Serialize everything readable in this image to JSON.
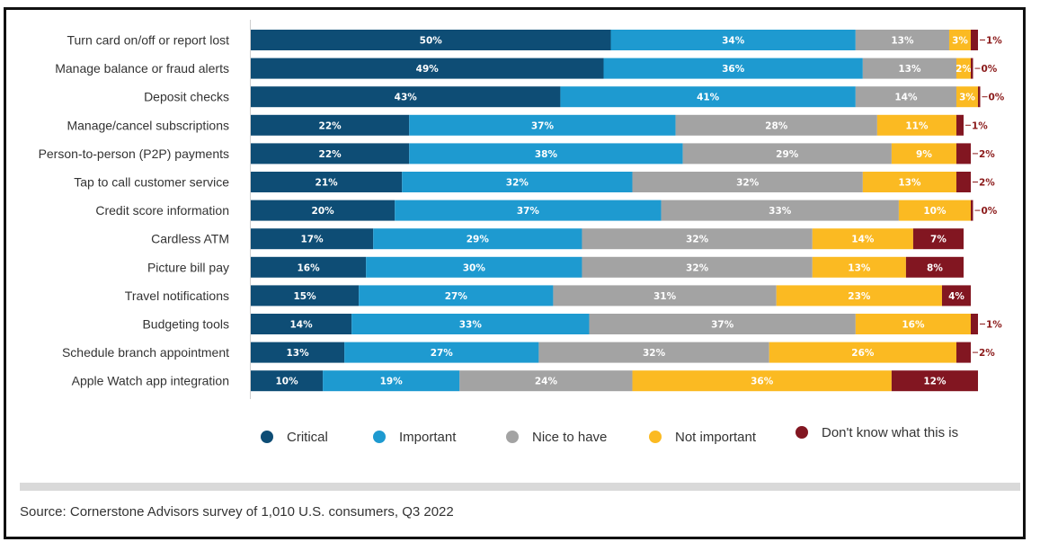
{
  "chart_data": {
    "type": "bar",
    "orientation": "horizontal",
    "stacked": true,
    "categories": [
      "Turn card on/off or report lost",
      "Manage balance or fraud alerts",
      "Deposit checks",
      "Manage/cancel subscriptions",
      "Person-to-person (P2P) payments",
      "Tap to call customer service",
      "Credit score information",
      "Cardless ATM",
      "Picture bill pay",
      "Travel notifications",
      "Budgeting tools",
      "Schedule branch appointment",
      "Apple Watch app integration"
    ],
    "series": [
      {
        "name": "Critical",
        "color": "#0e4d75",
        "values": [
          50,
          49,
          43,
          22,
          22,
          21,
          20,
          17,
          16,
          15,
          14,
          13,
          10
        ]
      },
      {
        "name": "Important",
        "color": "#1e9ad0",
        "values": [
          34,
          36,
          41,
          37,
          38,
          32,
          37,
          29,
          30,
          27,
          33,
          27,
          19
        ]
      },
      {
        "name": "Nice to have",
        "color": "#a3a3a3",
        "values": [
          13,
          13,
          14,
          28,
          29,
          32,
          33,
          32,
          32,
          31,
          37,
          32,
          24
        ]
      },
      {
        "name": "Not important",
        "color": "#fbba22",
        "values": [
          3,
          2,
          3,
          11,
          9,
          13,
          10,
          14,
          13,
          23,
          16,
          26,
          36
        ]
      },
      {
        "name": "Don't know what this is",
        "color": "#821621",
        "values": [
          1,
          0,
          0,
          1,
          2,
          2,
          0,
          7,
          8,
          4,
          1,
          2,
          12
        ]
      }
    ],
    "xlim": [
      0,
      100
    ],
    "legend_position": "bottom",
    "grid": false
  },
  "source": "Source: Cornerstone Advisors survey of 1,010 U.S. consumers, Q3 2022"
}
